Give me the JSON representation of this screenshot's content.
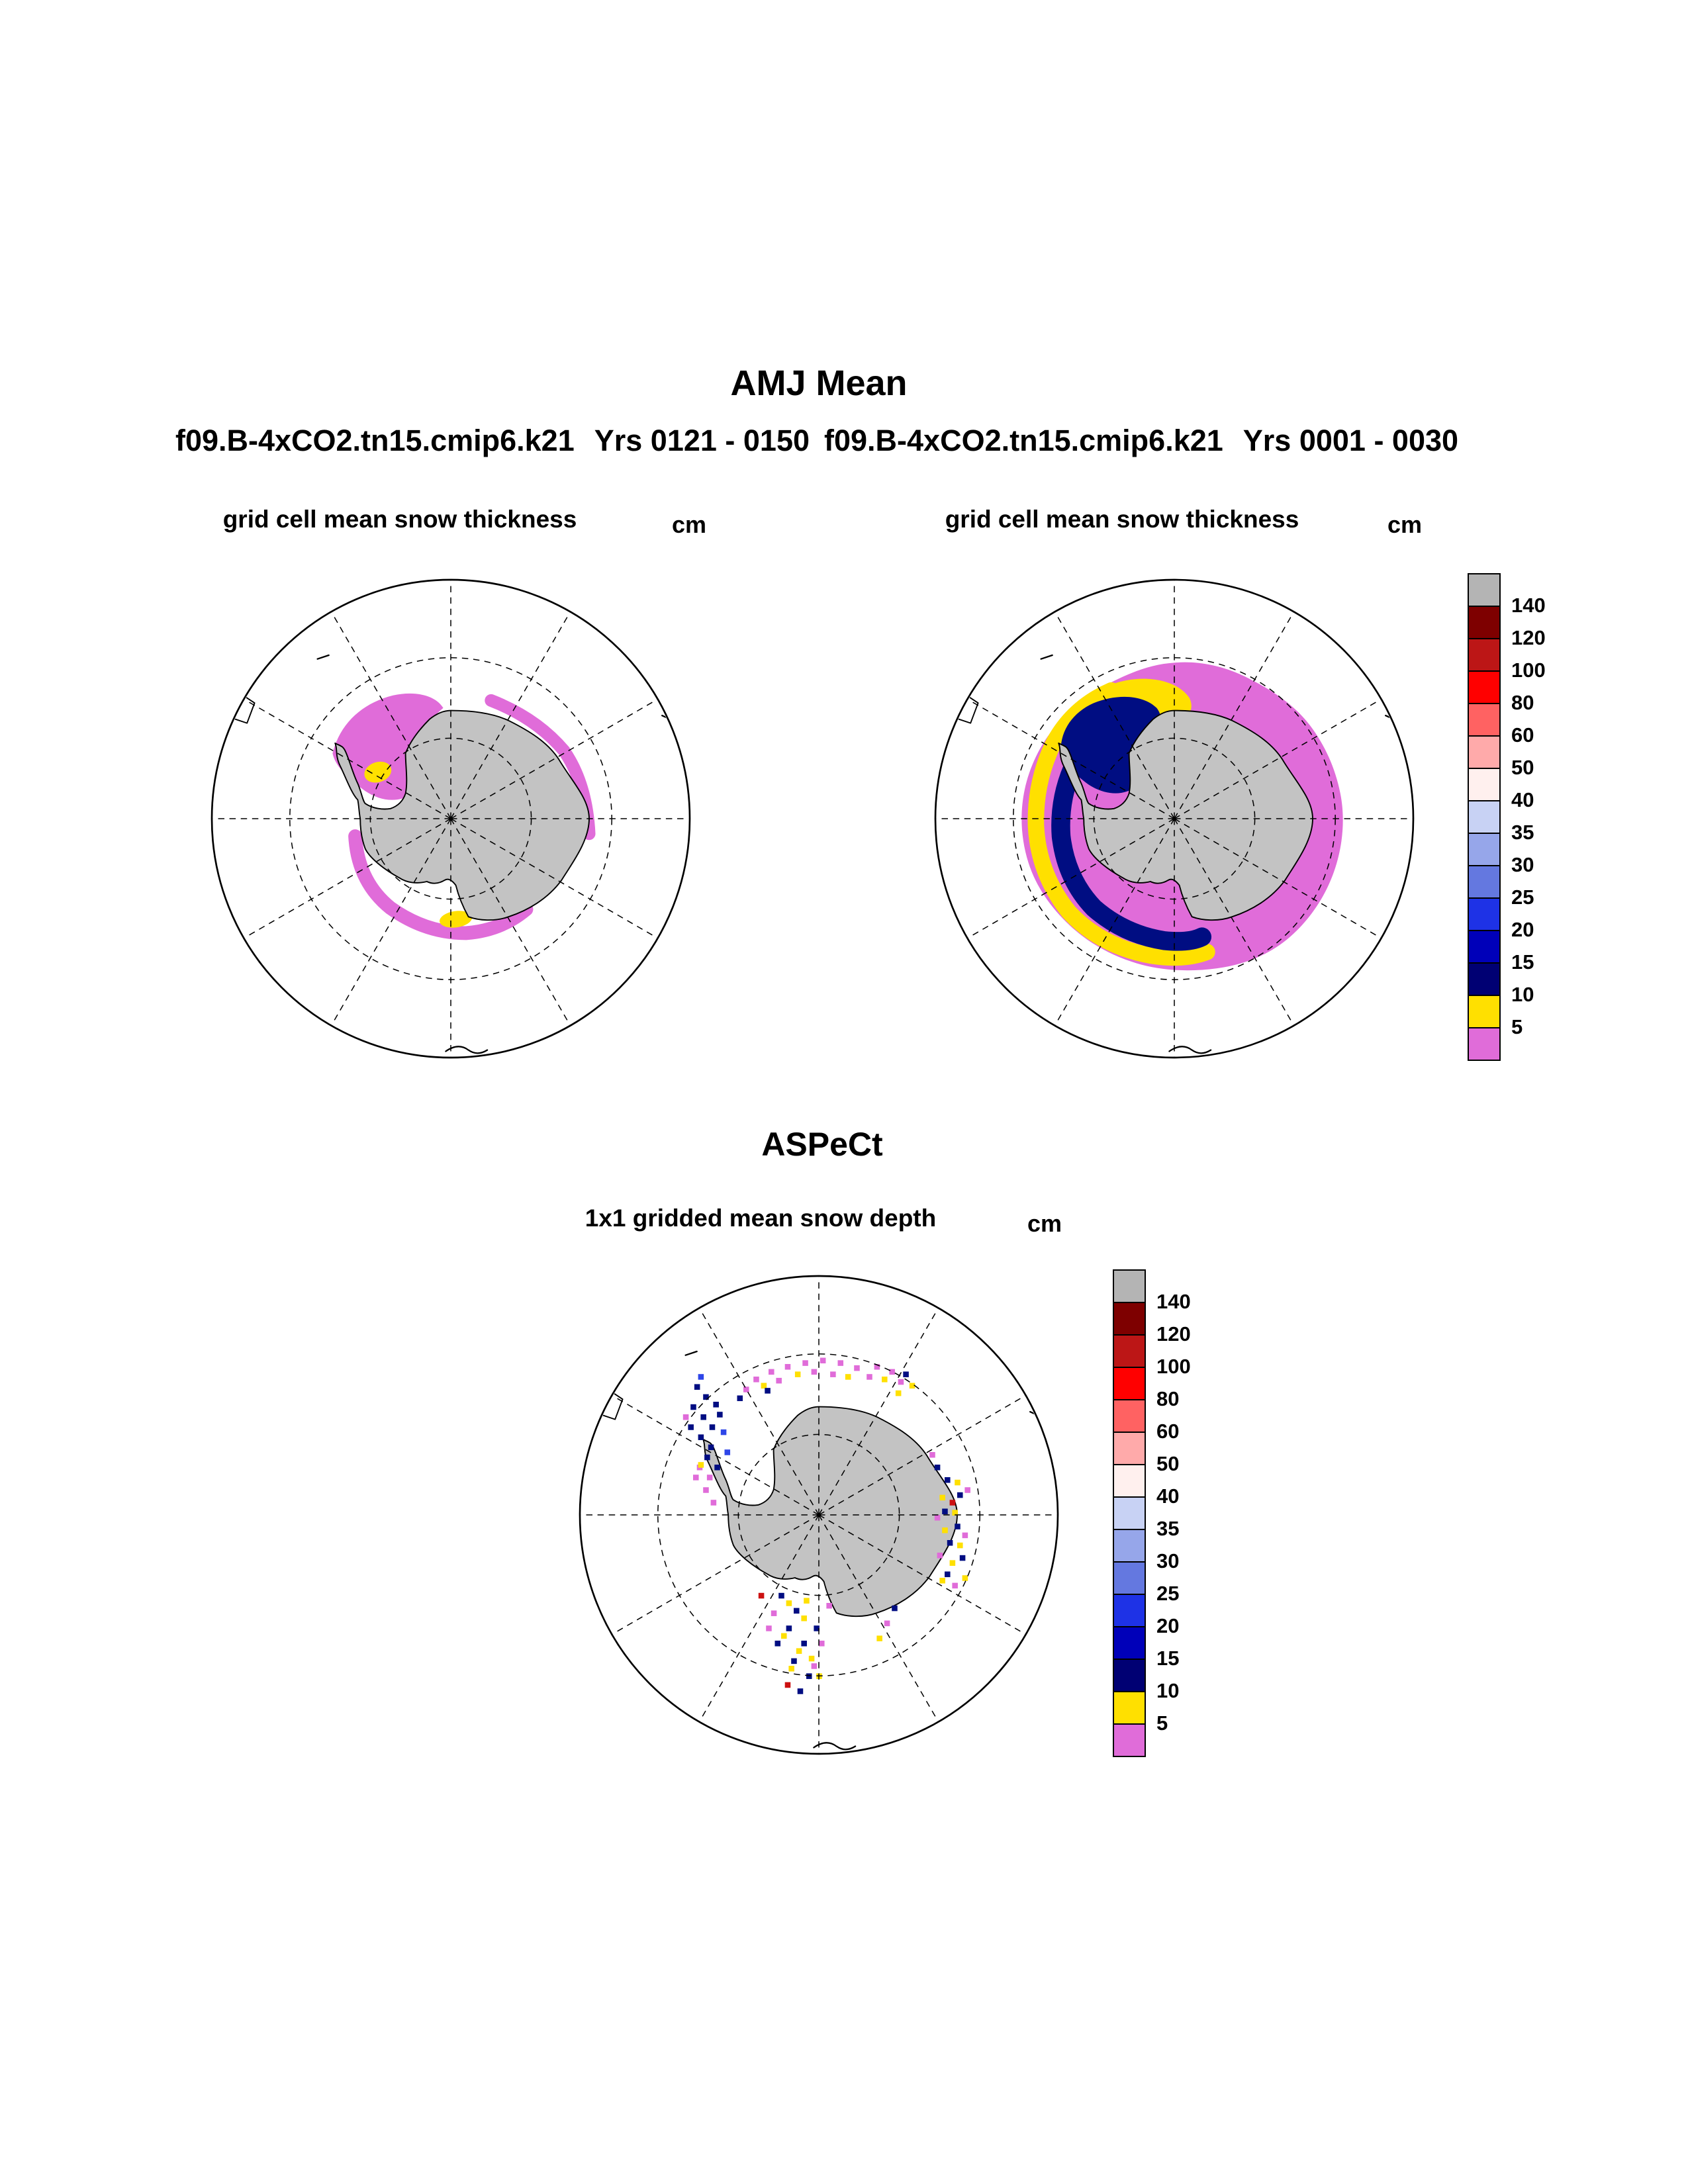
{
  "colors": {
    "land": "#c3c3c3",
    "magenta": "#e06cd9",
    "yellow": "#ffe000",
    "navy": "#000d82",
    "blue": "#2e46e8",
    "red": "#cc1111"
  },
  "header": {
    "title": "AMJ Mean",
    "run_left": "f09.B-4xCO2.tn15.cmip6.k21",
    "years_left": "Yrs 0121 - 0150",
    "run_right": "f09.B-4xCO2.tn15.cmip6.k21",
    "years_right": "Yrs 0001 - 0030"
  },
  "panel_left": {
    "title": "grid cell mean snow thickness",
    "units": "cm"
  },
  "panel_right": {
    "title": "grid cell mean snow thickness",
    "units": "cm"
  },
  "panel_bottom": {
    "section": "ASPeCt",
    "title": "1x1 gridded mean snow depth",
    "units": "cm"
  },
  "colorbar": {
    "units": "cm",
    "labels": [
      "140",
      "120",
      "100",
      "80",
      "60",
      "50",
      "40",
      "35",
      "30",
      "25",
      "20",
      "15",
      "10",
      "5"
    ],
    "cells": [
      {
        "range": "gt140",
        "color": "#b4b4b4"
      },
      {
        "range": "120-140",
        "color": "#7e0000"
      },
      {
        "range": "100-120",
        "color": "#bc1616"
      },
      {
        "range": "80-100",
        "color": "#ff0000"
      },
      {
        "range": "60-80",
        "color": "#ff6262"
      },
      {
        "range": "50-60",
        "color": "#ffaaaa"
      },
      {
        "range": "40-50",
        "color": "#fff0ee"
      },
      {
        "range": "35-40",
        "color": "#c8d2f4"
      },
      {
        "range": "30-35",
        "color": "#96a6ea"
      },
      {
        "range": "25-30",
        "color": "#6478e0"
      },
      {
        "range": "20-25",
        "color": "#1e32e6"
      },
      {
        "range": "15-20",
        "color": "#0000b9"
      },
      {
        "range": "10-15",
        "color": "#000073"
      },
      {
        "range": "5-10",
        "color": "#ffe000"
      },
      {
        "range": "lt5",
        "color": "#e06cd9"
      }
    ]
  },
  "chart_data": {
    "type": "heatmap",
    "title": "AMJ Mean",
    "projection": "south polar stereographic",
    "units": "cm",
    "levels": [
      5,
      10,
      15,
      20,
      25,
      30,
      35,
      40,
      50,
      60,
      80,
      100,
      120,
      140
    ],
    "palette_top_to_bottom": [
      "#b4b4b4",
      "#7e0000",
      "#bc1616",
      "#ff0000",
      "#ff6262",
      "#ffaaaa",
      "#fff0ee",
      "#c8d2f4",
      "#96a6ea",
      "#6478e0",
      "#1e32e6",
      "#0000b9",
      "#000073",
      "#ffe000",
      "#e06cd9"
    ],
    "legend_position": "right, vertical, labels at level boundaries",
    "panels": [
      {
        "name": "f09.B-4xCO2.tn15.cmip6.k21 Yrs 0121 - 0150",
        "variable": "grid cell mean snow thickness",
        "units": "cm",
        "summary": "Thin snow (<5 cm, violet) confined to a narrow fringe in the Weddell Sea, along the East Antarctic coast and around the Ross Sea coast; small 5-10 cm (yellow) patches in the inner Weddell Sea and Ross Sea."
      },
      {
        "name": "f09.B-4xCO2.tn15.cmip6.k21 Yrs 0001 - 0030",
        "variable": "grid cell mean snow thickness",
        "units": "cm",
        "summary": "Broad circumpolar band of <5 cm snow (violet); 5-10 cm (yellow) and 10-20 cm (dark navy) snow filling the Weddell Sea and running along the Bellingshausen/Amundsen coast into the Ross Sea."
      },
      {
        "name": "ASPeCt",
        "variable": "1x1 gridded mean snow depth",
        "units": "cm",
        "summary": "Sparse ship-based 1x1 degree observations: scattered cells of <5 cm (violet), 5-10 cm (yellow) and 10-25 cm (blue/navy) snow along the coast and in the Weddell and Ross Seas, with a few deeper (red) cells."
      }
    ]
  }
}
